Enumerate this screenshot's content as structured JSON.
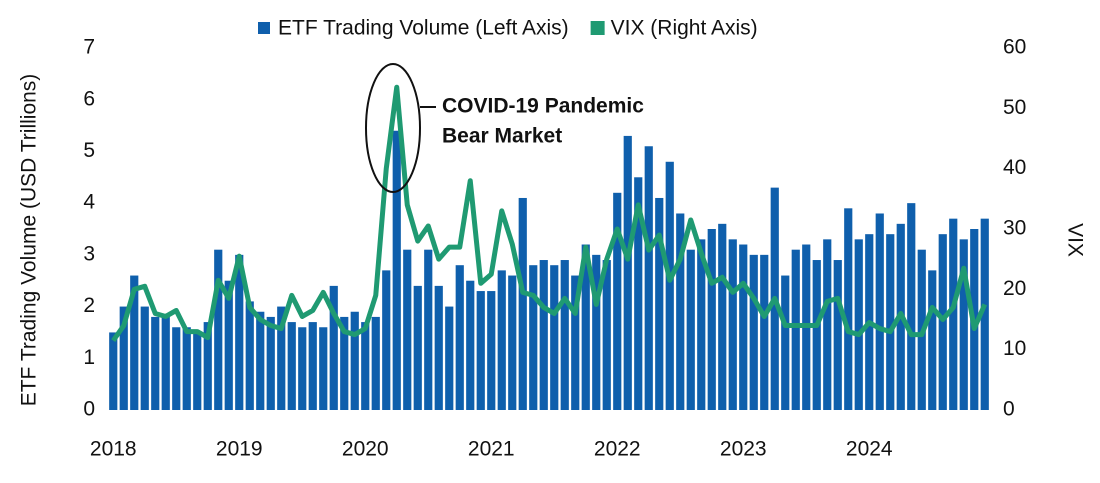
{
  "chart_data": {
    "type": "bar",
    "y_label": "ETF Trading Volume (USD Trillions)",
    "y2_label": "VIX",
    "annotation": [
      "COVID-19 Pandemic",
      "Bear Market"
    ],
    "categories": [
      "2018",
      null,
      null,
      null,
      null,
      null,
      null,
      null,
      null,
      null,
      null,
      null,
      "2019",
      null,
      null,
      null,
      null,
      null,
      null,
      null,
      null,
      null,
      null,
      null,
      "2020",
      null,
      null,
      null,
      null,
      null,
      null,
      null,
      null,
      null,
      null,
      null,
      "2021",
      null,
      null,
      null,
      null,
      null,
      null,
      null,
      null,
      null,
      null,
      null,
      "2022",
      null,
      null,
      null,
      null,
      null,
      null,
      null,
      null,
      null,
      null,
      null,
      "2023",
      null,
      null,
      null,
      null,
      null,
      null,
      null,
      null,
      null,
      null,
      null,
      "2024",
      null,
      null,
      null,
      null,
      null,
      null,
      null,
      null,
      null,
      null,
      null
    ],
    "series": [
      {
        "name": "ETF Trading Volume (Left Axis)",
        "type": "bar",
        "color": "#0f5fac",
        "values": [
          1.5,
          2.0,
          2.6,
          2.0,
          1.8,
          1.8,
          1.6,
          1.6,
          1.5,
          1.7,
          3.1,
          2.5,
          3.0,
          2.1,
          1.9,
          1.8,
          2.0,
          1.7,
          1.6,
          1.7,
          1.6,
          2.4,
          1.8,
          1.9,
          1.7,
          1.8,
          2.7,
          5.4,
          3.1,
          2.4,
          3.1,
          2.4,
          2.0,
          2.8,
          2.5,
          2.3,
          2.3,
          2.7,
          2.6,
          4.1,
          2.8,
          2.9,
          2.8,
          2.9,
          2.6,
          3.2,
          3.0,
          2.9,
          4.2,
          5.3,
          4.5,
          5.1,
          4.1,
          4.8,
          3.8,
          3.1,
          3.3,
          3.5,
          3.6,
          3.3,
          3.2,
          3.0,
          3.0,
          4.3,
          2.6,
          3.1,
          3.2,
          2.9,
          3.3,
          2.9,
          3.9,
          3.3,
          3.4,
          3.8,
          3.4,
          3.6,
          4.0,
          3.1,
          2.7,
          3.4,
          3.7,
          3.3,
          3.5,
          3.7
        ]
      },
      {
        "name": "VIX (Right Axis)",
        "type": "line",
        "axis": "y2",
        "color": "#1f9a72",
        "values": [
          11.5,
          14,
          20,
          20.5,
          16,
          15.5,
          16.5,
          13,
          13,
          12,
          21.5,
          18.5,
          25.5,
          17,
          15,
          14,
          13.5,
          19,
          15.5,
          16.5,
          19.5,
          16,
          13,
          12.5,
          13.5,
          19,
          40,
          53.5,
          34,
          28,
          30.5,
          25,
          27,
          27,
          38,
          21,
          22.5,
          33,
          27.5,
          19.5,
          19,
          17,
          16,
          18.5,
          16,
          27,
          17.5,
          25,
          30,
          25,
          34,
          26.5,
          29,
          21.5,
          25,
          31.5,
          26,
          21,
          22,
          19.5,
          21,
          18.5,
          15.5,
          18.5,
          14,
          14,
          14,
          14,
          18,
          18.5,
          13,
          12.5,
          14.5,
          13.5,
          13,
          16,
          12.5,
          12.5,
          17,
          15,
          17,
          23.5,
          13.5,
          17.5
        ]
      }
    ],
    "ylim": [
      0,
      7
    ],
    "yticks": [
      0,
      1,
      2,
      3,
      4,
      5,
      6,
      7
    ],
    "y2lim": [
      0,
      60
    ],
    "y2ticks": [
      0,
      10,
      20,
      30,
      40,
      50,
      60
    ],
    "legend": "top"
  }
}
